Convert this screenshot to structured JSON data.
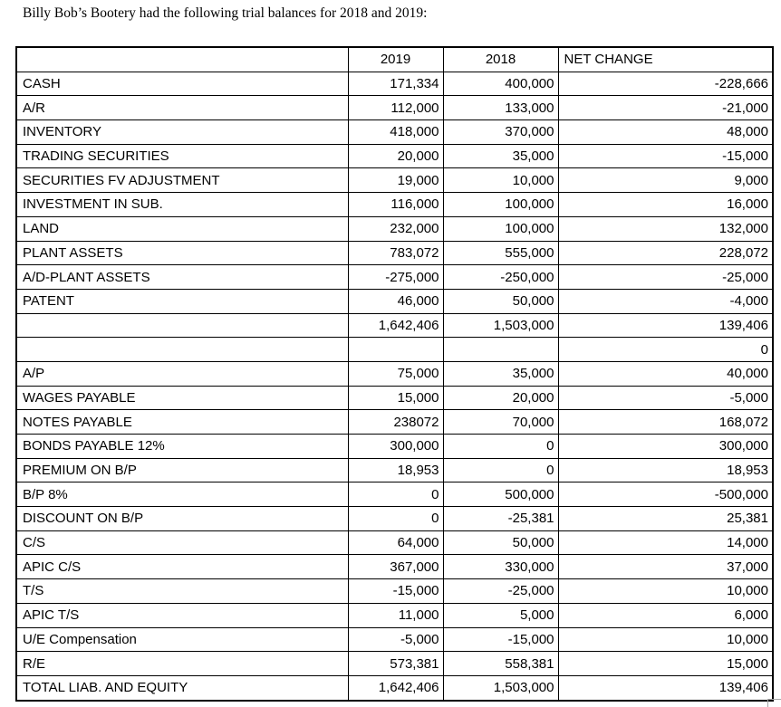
{
  "page": {
    "title": "Billy Bob’s Bootery had the following trial balances for 2018 and 2019:"
  },
  "colors": {
    "background": "#ffffff",
    "text": "#000000",
    "table_border": "#000000",
    "adjacent_cell_border": "#a6a6a6"
  },
  "table": {
    "columns": [
      "2019",
      "2018",
      "NET CHANGE"
    ],
    "rows": [
      {
        "label": "CASH",
        "y2019": "171,334",
        "y2018": "400,000",
        "net": "-228,666"
      },
      {
        "label": "A/R",
        "y2019": "112,000",
        "y2018": "133,000",
        "net": "-21,000"
      },
      {
        "label": "INVENTORY",
        "y2019": "418,000",
        "y2018": "370,000",
        "net": "48,000"
      },
      {
        "label": "TRADING SECURITIES",
        "y2019": "20,000",
        "y2018": "35,000",
        "net": "-15,000"
      },
      {
        "label": "SECURITIES FV ADJUSTMENT",
        "y2019": "19,000",
        "y2018": "10,000",
        "net": "9,000"
      },
      {
        "label": "INVESTMENT IN SUB.",
        "y2019": "116,000",
        "y2018": "100,000",
        "net": "16,000"
      },
      {
        "label": "LAND",
        "y2019": "232,000",
        "y2018": "100,000",
        "net": "132,000"
      },
      {
        "label": "PLANT ASSETS",
        "y2019": "783,072",
        "y2018": "555,000",
        "net": "228,072"
      },
      {
        "label": "A/D-PLANT ASSETS",
        "y2019": "-275,000",
        "y2018": "-250,000",
        "net": "-25,000"
      },
      {
        "label": "PATENT",
        "y2019": "46,000",
        "y2018": "50,000",
        "net": "-4,000"
      },
      {
        "label": "",
        "y2019": "1,642,406",
        "y2018": "1,503,000",
        "net": "139,406"
      },
      {
        "label": "",
        "y2019": "",
        "y2018": "",
        "net": "0"
      },
      {
        "label": "A/P",
        "y2019": "75,000",
        "y2018": "35,000",
        "net": "40,000"
      },
      {
        "label": "WAGES PAYABLE",
        "y2019": "15,000",
        "y2018": "20,000",
        "net": "-5,000"
      },
      {
        "label": "NOTES PAYABLE",
        "y2019": "238072",
        "y2018": "70,000",
        "net": "168,072"
      },
      {
        "label": "BONDS PAYABLE 12%",
        "y2019": "300,000",
        "y2018": "0",
        "net": "300,000"
      },
      {
        "label": "PREMIUM ON B/P",
        "y2019": "18,953",
        "y2018": "0",
        "net": "18,953"
      },
      {
        "label": "B/P 8%",
        "y2019": "0",
        "y2018": "500,000",
        "net": "-500,000"
      },
      {
        "label": "DISCOUNT ON B/P",
        "y2019": "0",
        "y2018": "-25,381",
        "net": "25,381"
      },
      {
        "label": "C/S",
        "y2019": "64,000",
        "y2018": "50,000",
        "net": "14,000"
      },
      {
        "label": "APIC C/S",
        "y2019": "367,000",
        "y2018": "330,000",
        "net": "37,000"
      },
      {
        "label": "T/S",
        "y2019": "-15,000",
        "y2018": "-25,000",
        "net": "10,000"
      },
      {
        "label": "APIC T/S",
        "y2019": "11,000",
        "y2018": "5,000",
        "net": "6,000"
      },
      {
        "label": "U/E Compensation",
        "y2019": "-5,000",
        "y2018": "-15,000",
        "net": "10,000"
      },
      {
        "label": "R/E",
        "y2019": "573,381",
        "y2018": "558,381",
        "net": "15,000"
      },
      {
        "label": "TOTAL LIAB. AND EQUITY",
        "y2019": "1,642,406",
        "y2018": "1,503,000",
        "net": "139,406"
      }
    ]
  }
}
